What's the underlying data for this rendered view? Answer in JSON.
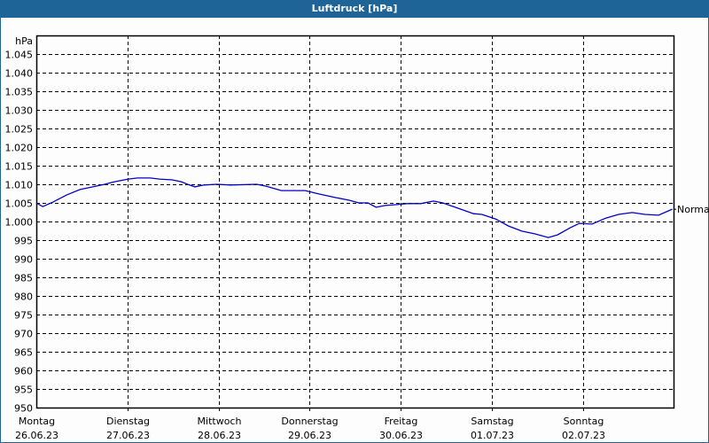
{
  "window": {
    "title": "Luftdruck [hPa]",
    "title_bg": "#1e6496",
    "line_color": "#0000c8"
  },
  "chart_data": {
    "type": "line",
    "title": "Luftdruck [hPa]",
    "xlabel": "",
    "ylabel": "hPa",
    "ylim": [
      950,
      1049
    ],
    "grid": true,
    "legend": null,
    "y_ticks": [
      "950",
      "955",
      "960",
      "965",
      "970",
      "975",
      "980",
      "985",
      "990",
      "995",
      "1.000",
      "1.005",
      "1.010",
      "1.015",
      "1.020",
      "1.025",
      "1.030",
      "1.035",
      "1.040",
      "1.045"
    ],
    "x_ticks": [
      {
        "day": "Montag",
        "date": "26.06.23"
      },
      {
        "day": "Dienstag",
        "date": "27.06.23"
      },
      {
        "day": "Mittwoch",
        "date": "28.06.23"
      },
      {
        "day": "Donnerstag",
        "date": "29.06.23"
      },
      {
        "day": "Freitag",
        "date": "30.06.23"
      },
      {
        "day": "Samstag",
        "date": "01.07.23"
      },
      {
        "day": "Sonntag",
        "date": "02.07.23"
      }
    ],
    "annotations": [
      {
        "text": "Normal",
        "value": 1003.3
      }
    ],
    "series": [
      {
        "name": "Luftdruck",
        "x_days": [
          0.0,
          0.07,
          0.18,
          0.33,
          0.48,
          0.62,
          0.75,
          0.86,
          1.01,
          1.11,
          1.25,
          1.35,
          1.49,
          1.59,
          1.66,
          1.74,
          1.84,
          1.98,
          2.13,
          2.42,
          2.52,
          2.69,
          2.95,
          3.1,
          3.29,
          3.44,
          3.54,
          3.64,
          3.73,
          3.83,
          3.93,
          4.07,
          4.22,
          4.36,
          4.46,
          4.6,
          4.8,
          4.89,
          5.04,
          5.18,
          5.33,
          5.47,
          5.62,
          5.72,
          5.86,
          5.96,
          6.1,
          6.25,
          6.39,
          6.54,
          6.68,
          6.83,
          6.98
        ],
        "values": [
          1005,
          1004,
          1005.2,
          1007.1,
          1008.6,
          1009.3,
          1010,
          1010.7,
          1011.4,
          1011.7,
          1011.7,
          1011.4,
          1011.2,
          1010.7,
          1010,
          1009.3,
          1009.8,
          1010,
          1009.8,
          1010,
          1009.5,
          1008.3,
          1008.3,
          1007.4,
          1006.4,
          1005.7,
          1005,
          1005,
          1003.8,
          1004.3,
          1004.5,
          1004.8,
          1004.8,
          1005.5,
          1005,
          1003.8,
          1002.1,
          1001.9,
          1000.7,
          998.8,
          997.4,
          996.7,
          995.7,
          996.4,
          998.3,
          999.5,
          999.3,
          1000.9,
          1001.9,
          1002.4,
          1001.9,
          1001.7,
          1003.3
        ]
      }
    ]
  }
}
